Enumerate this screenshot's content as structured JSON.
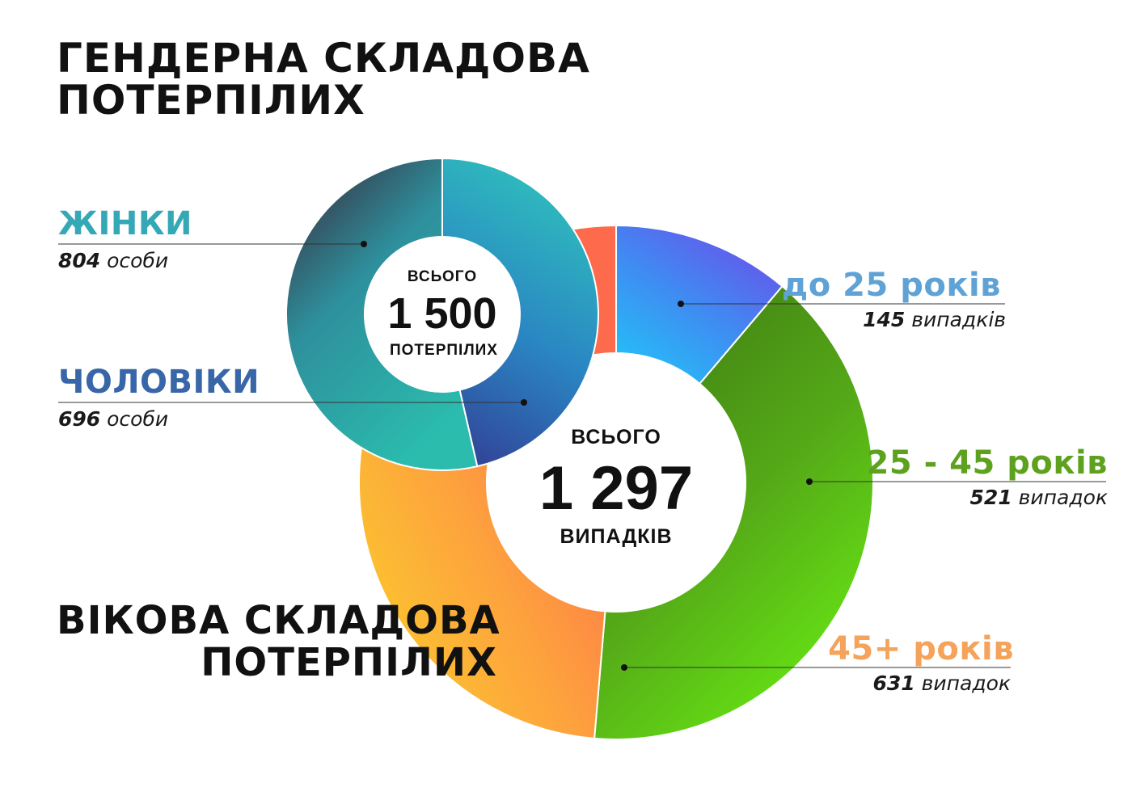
{
  "colors": {
    "women": "#35a8b6",
    "men": "#3866a8",
    "under25": "#5fa3d6",
    "age25_45": "#5ea11e",
    "over45": "#f5a25a",
    "text": "#111111"
  },
  "gender": {
    "title_line1": "ГЕНДЕРНА СКЛАДОВА",
    "title_line2": "ПОТЕРПІЛИХ",
    "center_top": "ВСЬОГО",
    "center_value": "1 500",
    "center_bottom": "ПОТЕРПІЛИХ",
    "women": {
      "label": "ЖІНКИ",
      "value": "804",
      "unit": "особи"
    },
    "men": {
      "label": "ЧОЛОВІКИ",
      "value": "696",
      "unit": "особи"
    }
  },
  "age": {
    "title_line1": "ВІКОВА СКЛАДОВА",
    "title_line2": "ПОТЕРПІЛИХ",
    "center_top": "ВСЬОГО",
    "center_value": "1 297",
    "center_bottom": "ВИПАДКІВ",
    "under25": {
      "label": "до 25 років",
      "value": "145",
      "unit": "випадків"
    },
    "age25_45": {
      "label": "25 - 45 років",
      "value": "521",
      "unit": "випадок"
    },
    "over45": {
      "label": "45+ років",
      "value": "631",
      "unit": "випадок"
    }
  },
  "chart_data": [
    {
      "type": "pie",
      "title": "ГЕНДЕРНА СКЛАДОВА ПОТЕРПІЛИХ",
      "categories": [
        "ЖІНКИ",
        "ЧОЛОВІКИ"
      ],
      "values": [
        804,
        696
      ],
      "total": 1500
    },
    {
      "type": "pie",
      "title": "ВІКОВА СКЛАДОВА ПОТЕРПІЛИХ",
      "categories": [
        "до 25 років",
        "25 - 45 років",
        "45+ років"
      ],
      "values": [
        145,
        521,
        631
      ],
      "total": 1297
    }
  ]
}
